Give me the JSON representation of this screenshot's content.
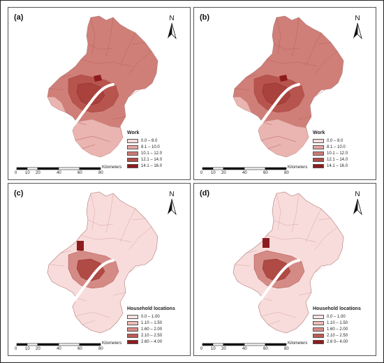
{
  "panels": [
    {
      "label": "(a)",
      "legend_title": "Work",
      "legend_items": [
        "0.0 – 8.0",
        "8.1 – 10.0",
        "10.1 – 12.0",
        "12.1 – 14.0",
        "14.1 – 16.0"
      ],
      "legend_colors": [
        "#f7dada",
        "#e4a6a2",
        "#cd7a73",
        "#b24d47",
        "#8e1b1d"
      ],
      "base_color": "#cf7f78",
      "core_color": "#a9413d",
      "periphery_color": "#eab5b0",
      "scheme": "work"
    },
    {
      "label": "(b)",
      "legend_title": "Work",
      "legend_items": [
        "0.0 – 8.0",
        "8.1 – 10.0",
        "10.1 – 12.0",
        "12.1 – 14.0",
        "14.1 – 16.0"
      ],
      "legend_colors": [
        "#f7dada",
        "#e4a6a2",
        "#cd7a73",
        "#b24d47",
        "#8e1b1d"
      ],
      "base_color": "#cf7f78",
      "core_color": "#a9413d",
      "periphery_color": "#eab5b0",
      "scheme": "work"
    },
    {
      "label": "(c)",
      "legend_title": "Household locations",
      "legend_items": [
        "0.0 – 1.00",
        "1.10 – 1.50",
        "1.60 – 2.00",
        "2.10 – 2.50",
        "2.60 – 4.00"
      ],
      "legend_colors": [
        "#fbe3e3",
        "#eebcb8",
        "#d98c86",
        "#c05a54",
        "#8e1b1d"
      ],
      "base_color": "#f8dcdc",
      "core_color": "#b04a45",
      "periphery_color": "#fbe5e5",
      "scheme": "house"
    },
    {
      "label": "(d)",
      "legend_title": "Household locations",
      "legend_items": [
        "0.0 – 1.00",
        "1.10 – 1.50",
        "1.60 – 2.00",
        "2.10 – 2.50",
        "2.6 0– 4.00"
      ],
      "legend_colors": [
        "#fbe3e3",
        "#eebcb8",
        "#d98c86",
        "#c05a54",
        "#8e1b1d"
      ],
      "base_color": "#f8dcdc",
      "core_color": "#b04a45",
      "periphery_color": "#fbe5e5",
      "scheme": "house"
    }
  ],
  "north_label": "N",
  "scale": {
    "ticks": [
      "0",
      "10",
      "20",
      "40",
      "60",
      "80"
    ],
    "tick_km": [
      0,
      10,
      20,
      40,
      60,
      80
    ],
    "unit": "Kilometers"
  }
}
